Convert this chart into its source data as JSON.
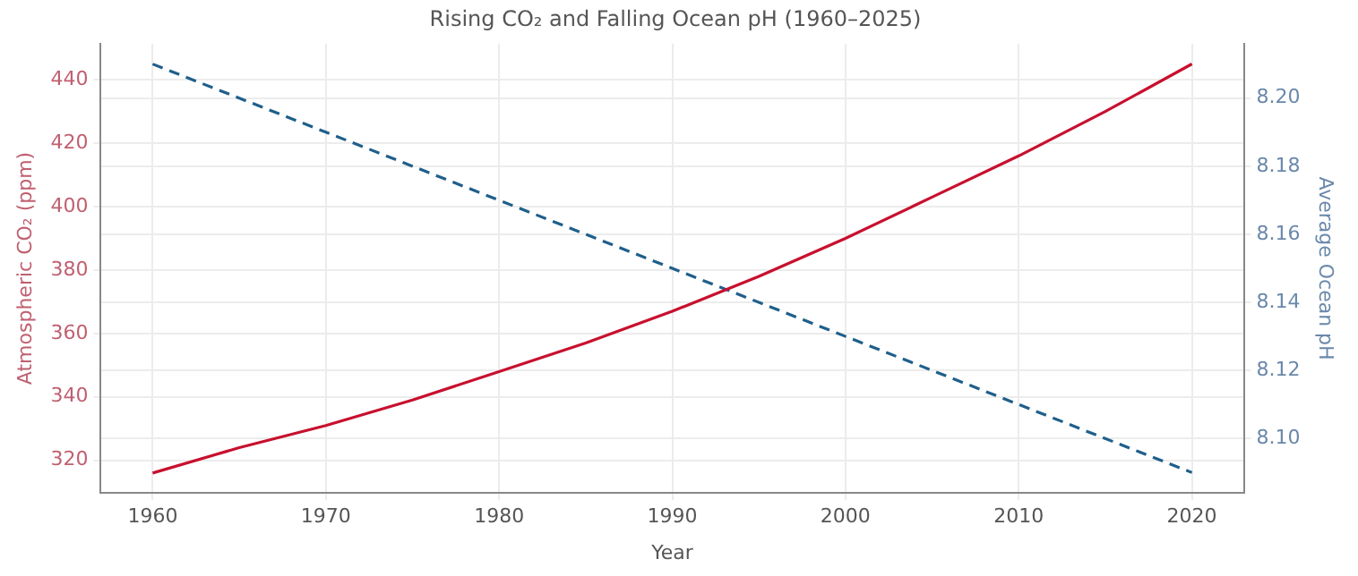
{
  "chart_data": {
    "type": "line",
    "title": "Rising CO₂ and Falling Ocean pH (1960–2025)",
    "xlabel": "Year",
    "ylabel": "Atmospheric CO₂ (ppm)",
    "y2label": "Average Ocean pH",
    "xlim": [
      1957,
      2023
    ],
    "xticks": [
      1960,
      1970,
      1980,
      1990,
      2000,
      2010,
      2020
    ],
    "ylim": [
      309.7,
      451.4
    ],
    "yticks": [
      320,
      340,
      360,
      380,
      400,
      420,
      440
    ],
    "y2lim": [
      8.084,
      8.216
    ],
    "y2ticks": [
      {
        "value": 8.1,
        "label": "8.10"
      },
      {
        "value": 8.12,
        "label": "8.12"
      },
      {
        "value": 8.14,
        "label": "8.14"
      },
      {
        "value": 8.16,
        "label": "8.16"
      },
      {
        "value": 8.18,
        "label": "8.18"
      },
      {
        "value": 8.2,
        "label": "8.20"
      }
    ],
    "grid": true,
    "legend": false,
    "marker": "none",
    "series": [
      {
        "color": "#c8102e",
        "line_style": "solid",
        "x": [
          1960,
          1965,
          1970,
          1975,
          1980,
          1985,
          1990,
          1995,
          2000,
          2005,
          2010,
          2015,
          2020
        ],
        "values": [
          316,
          324,
          331,
          339,
          348,
          357,
          367,
          378,
          390,
          403,
          416,
          430,
          445
        ]
      },
      {
        "color": "#1f5f8b",
        "line_style": "dashed",
        "axis": "y2",
        "x": [
          1960,
          1970,
          1980,
          1990,
          2000,
          2010,
          2020
        ],
        "values": [
          8.21,
          8.19,
          8.17,
          8.15,
          8.13,
          8.11,
          8.09
        ]
      }
    ]
  }
}
